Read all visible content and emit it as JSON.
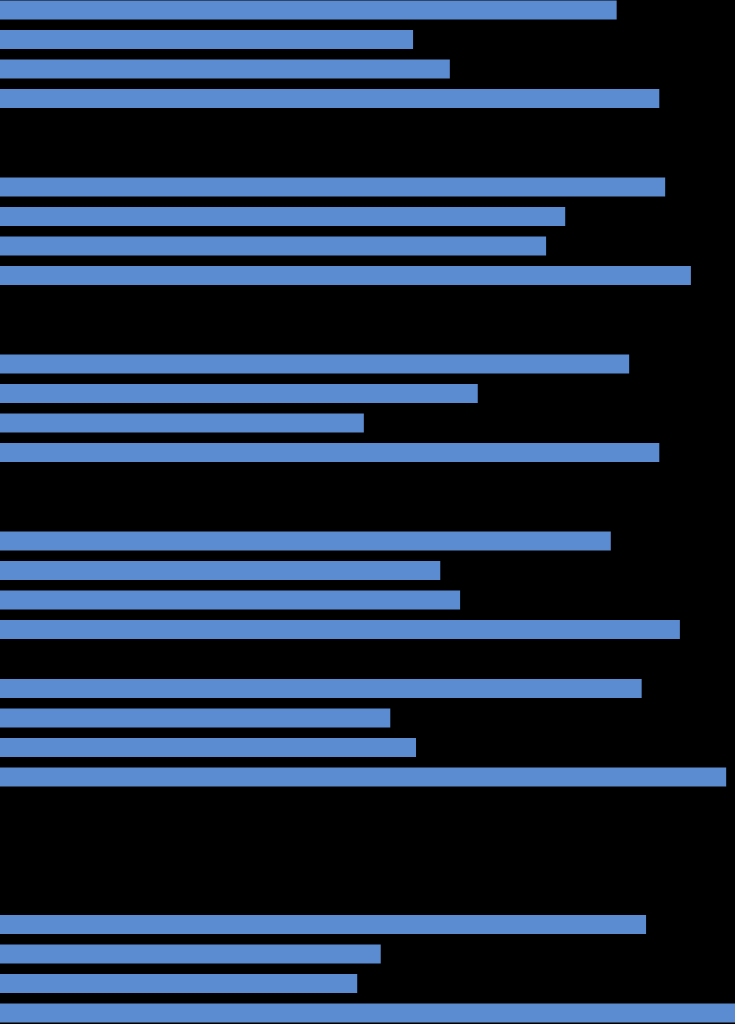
{
  "chart_data": {
    "type": "bar",
    "orientation": "horizontal",
    "color": "#5b8bd0",
    "categories": [
      null,
      null,
      null,
      null,
      null,
      null,
      null,
      null,
      null,
      null,
      null,
      null,
      null,
      null,
      null,
      null,
      null,
      null,
      null,
      null,
      null,
      null,
      null,
      null,
      null,
      null,
      null,
      null,
      null,
      null,
      null,
      null,
      null,
      null,
      null
    ],
    "values": [
      83.9,
      56.2,
      61.2,
      89.7,
      null,
      null,
      90.5,
      76.9,
      74.3,
      94.0,
      null,
      null,
      85.6,
      65.0,
      49.5,
      89.7,
      null,
      null,
      83.1,
      59.9,
      62.6,
      92.5,
      null,
      87.3,
      53.1,
      56.6,
      98.8,
      null,
      null,
      null,
      null,
      87.9,
      51.8,
      48.6,
      100.0
    ],
    "xlim": [
      0,
      100
    ],
    "grid": false,
    "tick_labels": false
  }
}
